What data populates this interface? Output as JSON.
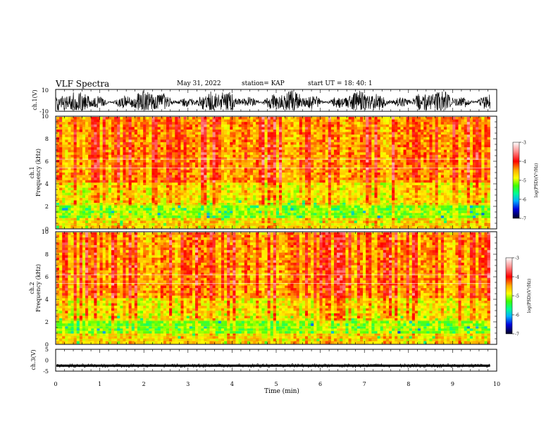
{
  "header": {
    "title": "VLF Spectra",
    "date": "May 31, 2022",
    "station": "station= KAP",
    "start": "start  UT  =   18: 40: 1"
  },
  "chart_data": [
    {
      "type": "line",
      "ylabel": "ch.1(V)",
      "ylim": [
        -10,
        10
      ],
      "y_tick_labels": [
        "10",
        "-10"
      ],
      "xlim": [
        0,
        10
      ],
      "data_end": 9.85,
      "description_values": {
        "mean": -1.5,
        "typical_min": -9,
        "typical_max": 9
      }
    },
    {
      "type": "heatmap",
      "ylabel": "ch.1\nFrequency  (kHz)",
      "ylabel_lines": [
        "ch.1",
        "Frequency  (kHz)"
      ],
      "ylim": [
        0,
        10
      ],
      "y_ticks": [
        0,
        2,
        4,
        6,
        8,
        10
      ],
      "xlim": [
        0,
        10
      ],
      "data_end": 9.85,
      "colorbar": {
        "label": "log(PSD)(V²/Hz)",
        "range": [
          -7,
          -3
        ],
        "ticks": [
          -3,
          -4,
          -5,
          -6,
          -7
        ]
      }
    },
    {
      "type": "heatmap",
      "ylabel": "ch.2\nFrequency  (kHz)",
      "ylabel_lines": [
        "ch.2",
        "Frequency  (kHz)"
      ],
      "ylim": [
        0,
        10
      ],
      "y_ticks": [
        0,
        2,
        4,
        6,
        8,
        10
      ],
      "xlim": [
        0,
        10
      ],
      "data_end": 9.85,
      "colorbar": {
        "label": "log(PSD)(V²/Hz)",
        "range": [
          -7,
          -3
        ],
        "ticks": [
          -3,
          -4,
          -5,
          -6,
          -7
        ]
      }
    },
    {
      "type": "line",
      "ylabel": "ch.3(V)",
      "ylim": [
        -5,
        5
      ],
      "y_ticks": [
        5,
        0,
        -5
      ],
      "xlim": [
        0,
        10
      ],
      "data_end": 9.85,
      "description_values": {
        "mean": -2.5,
        "typical_min": -3,
        "typical_max": -2
      }
    }
  ],
  "x_axis": {
    "label": "Time  (min)",
    "range": [
      0,
      10
    ],
    "ticks": [
      0,
      1,
      2,
      3,
      4,
      5,
      6,
      7,
      8,
      9,
      10
    ]
  },
  "colors": {
    "trace": "#000000",
    "colormap": [
      "#000033",
      "#0000cc",
      "#00a0ff",
      "#00ff80",
      "#60ff00",
      "#ffff00",
      "#ffa000",
      "#ff0000",
      "#ff8080",
      "#ffffff"
    ]
  }
}
